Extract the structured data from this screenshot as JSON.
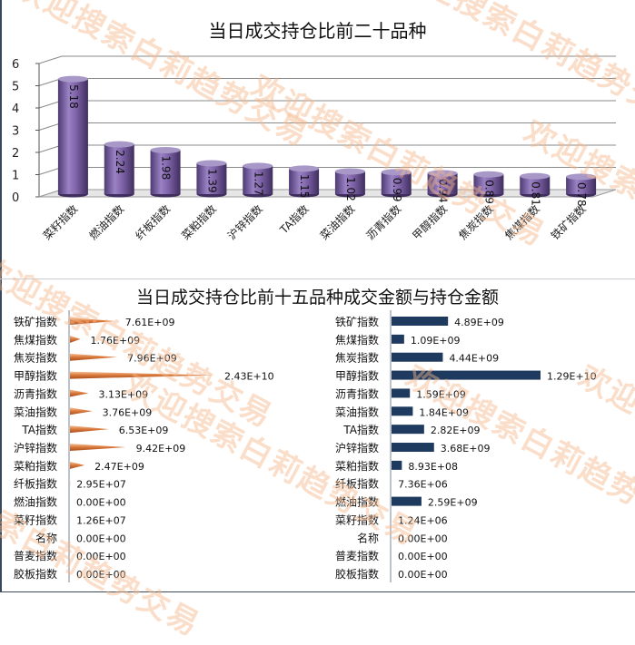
{
  "watermark": "欢迎搜索白莉趋势交易",
  "colors": {
    "bar3d": "#7f63a8",
    "cone": "#e8925a",
    "bar": "#1f3a5f"
  },
  "chart_data": [
    {
      "type": "bar",
      "title": "当日成交持仓比前二十品种",
      "categories": [
        "菜籽指数",
        "燃油指数",
        "纤板指数",
        "菜粕指数",
        "沪锌指数",
        "TA指数",
        "菜油指数",
        "沥青指数",
        "甲醇指数",
        "焦炭指数",
        "焦煤指数",
        "铁矿指数"
      ],
      "values": [
        5.18,
        2.24,
        1.98,
        1.39,
        1.27,
        1.15,
        1.02,
        0.99,
        0.94,
        0.89,
        0.81,
        0.78
      ],
      "value_labels": [
        "5.18",
        "2.24",
        "1.98",
        "1.39",
        "1.27",
        "1.15",
        "1.02",
        "0.99",
        "0.94",
        "0.89",
        "0.81",
        "0.78"
      ],
      "yticks": [
        "0",
        "1",
        "2",
        "3",
        "4",
        "5",
        "6"
      ],
      "ylim": [
        0,
        6
      ],
      "grid": true,
      "xlabel": "",
      "ylabel": ""
    },
    {
      "type": "bar",
      "orientation": "horizontal",
      "title": "当日成交持仓比前十五品种成交金额与持仓金额",
      "series_name": "成交金额",
      "categories": [
        "铁矿指数",
        "焦煤指数",
        "焦炭指数",
        "甲醇指数",
        "沥青指数",
        "菜油指数",
        "TA指数",
        "沪锌指数",
        "菜粕指数",
        "纤板指数",
        "燃油指数",
        "菜籽指数",
        "名称",
        "普麦指数",
        "胶板指数"
      ],
      "values": [
        7610000000.0,
        1760000000.0,
        7960000000.0,
        24300000000.0,
        3130000000.0,
        3760000000.0,
        6530000000.0,
        9420000000.0,
        2470000000.0,
        29500000.0,
        0,
        12600000.0,
        0,
        0,
        0
      ],
      "value_labels": [
        "7.61E+09",
        "1.76E+09",
        "7.96E+09",
        "2.43E+10",
        "3.13E+09",
        "3.76E+09",
        "6.53E+09",
        "9.42E+09",
        "2.47E+09",
        "2.95E+07",
        "0.00E+00",
        "1.26E+07",
        "0.00E+00",
        "0.00E+00",
        "0.00E+00"
      ]
    },
    {
      "type": "bar",
      "orientation": "horizontal",
      "series_name": "持仓金额",
      "categories": [
        "铁矿指数",
        "焦煤指数",
        "焦炭指数",
        "甲醇指数",
        "沥青指数",
        "菜油指数",
        "TA指数",
        "沪锌指数",
        "菜粕指数",
        "纤板指数",
        "燃油指数",
        "菜籽指数",
        "名称",
        "普麦指数",
        "胶板指数"
      ],
      "values": [
        4890000000.0,
        1090000000.0,
        4440000000.0,
        12900000000.0,
        1590000000.0,
        1840000000.0,
        2820000000.0,
        3680000000.0,
        893000000.0,
        7360000.0,
        2590000000.0,
        1240000.0,
        0,
        0,
        0
      ],
      "value_labels": [
        "4.89E+09",
        "1.09E+09",
        "4.44E+09",
        "1.29E+10",
        "1.59E+09",
        "1.84E+09",
        "2.82E+09",
        "3.68E+09",
        "8.93E+08",
        "7.36E+06",
        "2.59E+09",
        "1.24E+06",
        "0.00E+00",
        "0.00E+00",
        "0.00E+00"
      ]
    }
  ]
}
